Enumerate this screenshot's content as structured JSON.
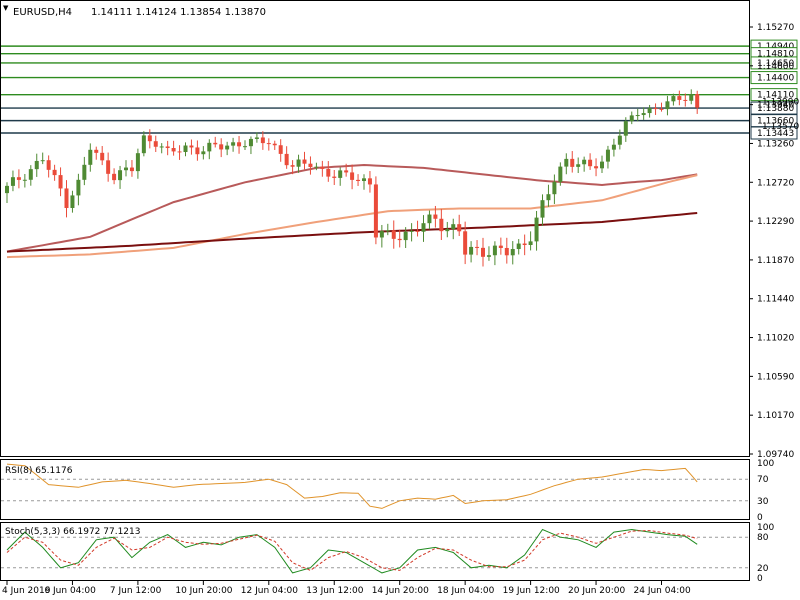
{
  "header": {
    "symbol": "EURUSD,H4",
    "ohlc": "1.14111 1.14124 1.13854 1.13870"
  },
  "colors": {
    "bull": "#4f8a33",
    "bear": "#ea4b3a",
    "resistance": "#2e8b1f",
    "support": "#1f3a4a",
    "ma_fast": "#b85a5a",
    "ma_mid": "#f0a07a",
    "ma_slow": "#7a0f0f",
    "rsi": "#e0932a",
    "stoch_main": "#1f8a1f",
    "stoch_signal": "#d23a2a",
    "grid": "#9a9a9a"
  },
  "chart_data": [
    {
      "type": "candlestick",
      "title": "EURUSD,H4",
      "y_ticks": [
        "1.15270",
        "1.14600",
        "1.13940",
        "1.13260",
        "1.12720",
        "1.12290",
        "1.11870",
        "1.11440",
        "1.11020",
        "1.10590",
        "1.10170",
        "1.09740"
      ],
      "y_tick_values": [
        1.1527,
        1.146,
        1.1394,
        1.1326,
        1.1272,
        1.1229,
        1.1187,
        1.1144,
        1.1102,
        1.1059,
        1.1017,
        1.0974
      ],
      "ylim": [
        1.0974,
        1.1558
      ],
      "x_ticks": [
        "4 Jun 2019",
        "6 Jun 04:00",
        "7 Jun 12:00",
        "10 Jun 20:00",
        "12 Jun 04:00",
        "13 Jun 12:00",
        "14 Jun 20:00",
        "18 Jun 04:00",
        "19 Jun 12:00",
        "20 Jun 20:00",
        "24 Jun 04:00"
      ],
      "x_tick_index": [
        0,
        11,
        22,
        33,
        44,
        55,
        66,
        77,
        88,
        99,
        110
      ],
      "bar_count": 117,
      "levels": [
        {
          "label": "1.14940",
          "value": 1.1494,
          "kind": "resistance"
        },
        {
          "label": "1.14810",
          "value": 1.1481,
          "kind": "resistance"
        },
        {
          "label": "1.14650",
          "value": 1.1465,
          "kind": "resistance"
        },
        {
          "label": "1.14400",
          "value": 1.144,
          "kind": "resistance"
        },
        {
          "label": "1.14110",
          "value": 1.1411,
          "kind": "resistance"
        },
        {
          "label": "1.13880",
          "value": 1.1388,
          "kind": "support"
        },
        {
          "label": "1.13660",
          "value": 1.1366,
          "kind": "support"
        },
        {
          "label": "1.13443",
          "value": 1.13443,
          "kind": "support"
        }
      ],
      "overlay_tags": [
        {
          "label": "1.13990",
          "value": 1.1399
        },
        {
          "label": "1.13570",
          "value": 1.1357
        }
      ],
      "anchors": [
        [
          0,
          1.1265
        ],
        [
          4,
          1.129
        ],
        [
          6,
          1.1305
        ],
        [
          8,
          1.1275
        ],
        [
          10,
          1.1252
        ],
        [
          12,
          1.127
        ],
        [
          14,
          1.132
        ],
        [
          16,
          1.1298
        ],
        [
          18,
          1.1282
        ],
        [
          21,
          1.129
        ],
        [
          23,
          1.1335
        ],
        [
          25,
          1.133
        ],
        [
          27,
          1.1312
        ],
        [
          30,
          1.132
        ],
        [
          33,
          1.1318
        ],
        [
          36,
          1.1322
        ],
        [
          40,
          1.1328
        ],
        [
          44,
          1.133
        ],
        [
          46,
          1.1312
        ],
        [
          48,
          1.1292
        ],
        [
          51,
          1.13
        ],
        [
          53,
          1.1288
        ],
        [
          55,
          1.128
        ],
        [
          58,
          1.1282
        ],
        [
          61,
          1.127
        ],
        [
          62,
          1.1215
        ],
        [
          64,
          1.1212
        ],
        [
          66,
          1.1216
        ],
        [
          68,
          1.1215
        ],
        [
          70,
          1.1226
        ],
        [
          72,
          1.1232
        ],
        [
          74,
          1.1222
        ],
        [
          76,
          1.1218
        ],
        [
          77,
          1.1195
        ],
        [
          80,
          1.1198
        ],
        [
          82,
          1.1197
        ],
        [
          84,
          1.1195
        ],
        [
          86,
          1.12
        ],
        [
          88,
          1.1215
        ],
        [
          90,
          1.1245
        ],
        [
          92,
          1.1275
        ],
        [
          94,
          1.1305
        ],
        [
          96,
          1.1298
        ],
        [
          98,
          1.1292
        ],
        [
          100,
          1.13
        ],
        [
          102,
          1.133
        ],
        [
          104,
          1.1358
        ],
        [
          106,
          1.138
        ],
        [
          108,
          1.1385
        ],
        [
          110,
          1.1392
        ],
        [
          112,
          1.14
        ],
        [
          114,
          1.1407
        ],
        [
          115,
          1.1411
        ],
        [
          116,
          1.1387
        ]
      ],
      "ma_fast": [
        [
          0,
          1.1196
        ],
        [
          14,
          1.1212
        ],
        [
          28,
          1.125
        ],
        [
          40,
          1.1272
        ],
        [
          52,
          1.1292
        ],
        [
          60,
          1.1296
        ],
        [
          70,
          1.1292
        ],
        [
          80,
          1.1283
        ],
        [
          90,
          1.1274
        ],
        [
          100,
          1.1269
        ],
        [
          110,
          1.1275
        ],
        [
          116,
          1.1283
        ]
      ],
      "ma_mid": [
        [
          0,
          1.119
        ],
        [
          14,
          1.1193
        ],
        [
          28,
          1.12
        ],
        [
          40,
          1.1215
        ],
        [
          52,
          1.1228
        ],
        [
          64,
          1.124
        ],
        [
          76,
          1.1243
        ],
        [
          88,
          1.1243
        ],
        [
          100,
          1.1252
        ],
        [
          110,
          1.127
        ],
        [
          116,
          1.1282
        ]
      ],
      "ma_slow": [
        [
          0,
          1.1196
        ],
        [
          20,
          1.1202
        ],
        [
          40,
          1.121
        ],
        [
          60,
          1.1217
        ],
        [
          80,
          1.1222
        ],
        [
          100,
          1.1228
        ],
        [
          116,
          1.1238
        ]
      ]
    },
    {
      "type": "line",
      "title": "RSI(8) 65.1176",
      "y_ticks": [
        "100",
        "70",
        "30",
        "0"
      ],
      "y_tick_values": [
        100,
        70,
        30,
        0
      ],
      "ylim": [
        0,
        100
      ],
      "levels": [
        70,
        30
      ],
      "series": [
        {
          "values": [
            [
              0,
              98
            ],
            [
              3,
              95
            ],
            [
              7,
              60
            ],
            [
              12,
              55
            ],
            [
              16,
              65
            ],
            [
              20,
              68
            ],
            [
              24,
              62
            ],
            [
              28,
              55
            ],
            [
              32,
              60
            ],
            [
              36,
              62
            ],
            [
              40,
              64
            ],
            [
              44,
              70
            ],
            [
              47,
              60
            ],
            [
              50,
              35
            ],
            [
              53,
              38
            ],
            [
              56,
              45
            ],
            [
              59,
              44
            ],
            [
              61,
              20
            ],
            [
              63,
              16
            ],
            [
              66,
              30
            ],
            [
              69,
              35
            ],
            [
              72,
              33
            ],
            [
              75,
              40
            ],
            [
              77,
              25
            ],
            [
              80,
              30
            ],
            [
              84,
              32
            ],
            [
              88,
              42
            ],
            [
              92,
              58
            ],
            [
              96,
              70
            ],
            [
              100,
              74
            ],
            [
              104,
              82
            ],
            [
              107,
              88
            ],
            [
              110,
              86
            ],
            [
              114,
              90
            ],
            [
              116,
              65
            ]
          ]
        }
      ]
    },
    {
      "type": "line",
      "title": "Stoch(5,3,3) 66.1972 77.1213",
      "y_ticks": [
        "100",
        "80",
        "20",
        "0"
      ],
      "y_tick_values": [
        100,
        80,
        20,
        0
      ],
      "ylim": [
        0,
        100
      ],
      "levels": [
        80,
        20
      ],
      "series": [
        {
          "values": [
            [
              0,
              55
            ],
            [
              3,
              90
            ],
            [
              6,
              60
            ],
            [
              9,
              20
            ],
            [
              12,
              30
            ],
            [
              15,
              75
            ],
            [
              18,
              80
            ],
            [
              21,
              40
            ],
            [
              24,
              70
            ],
            [
              27,
              85
            ],
            [
              30,
              60
            ],
            [
              33,
              70
            ],
            [
              36,
              65
            ],
            [
              39,
              80
            ],
            [
              42,
              85
            ],
            [
              45,
              60
            ],
            [
              48,
              10
            ],
            [
              51,
              20
            ],
            [
              54,
              55
            ],
            [
              57,
              50
            ],
            [
              60,
              30
            ],
            [
              63,
              10
            ],
            [
              66,
              20
            ],
            [
              69,
              55
            ],
            [
              72,
              60
            ],
            [
              75,
              50
            ],
            [
              78,
              20
            ],
            [
              81,
              25
            ],
            [
              84,
              20
            ],
            [
              87,
              45
            ],
            [
              90,
              95
            ],
            [
              93,
              80
            ],
            [
              96,
              75
            ],
            [
              99,
              60
            ],
            [
              102,
              90
            ],
            [
              105,
              95
            ],
            [
              108,
              90
            ],
            [
              111,
              85
            ],
            [
              114,
              82
            ],
            [
              116,
              66
            ]
          ]
        },
        {
          "values": [
            [
              0,
              50
            ],
            [
              3,
              80
            ],
            [
              6,
              70
            ],
            [
              9,
              35
            ],
            [
              12,
              25
            ],
            [
              15,
              60
            ],
            [
              18,
              78
            ],
            [
              21,
              55
            ],
            [
              24,
              60
            ],
            [
              27,
              80
            ],
            [
              30,
              70
            ],
            [
              33,
              66
            ],
            [
              36,
              68
            ],
            [
              39,
              76
            ],
            [
              42,
              84
            ],
            [
              45,
              72
            ],
            [
              48,
              30
            ],
            [
              51,
              15
            ],
            [
              54,
              40
            ],
            [
              57,
              52
            ],
            [
              60,
              40
            ],
            [
              63,
              20
            ],
            [
              66,
              15
            ],
            [
              69,
              40
            ],
            [
              72,
              58
            ],
            [
              75,
              55
            ],
            [
              78,
              35
            ],
            [
              81,
              22
            ],
            [
              84,
              22
            ],
            [
              87,
              35
            ],
            [
              90,
              75
            ],
            [
              93,
              88
            ],
            [
              96,
              80
            ],
            [
              99,
              68
            ],
            [
              102,
              80
            ],
            [
              105,
              92
            ],
            [
              108,
              93
            ],
            [
              111,
              88
            ],
            [
              114,
              84
            ],
            [
              116,
              77
            ]
          ]
        }
      ]
    }
  ]
}
